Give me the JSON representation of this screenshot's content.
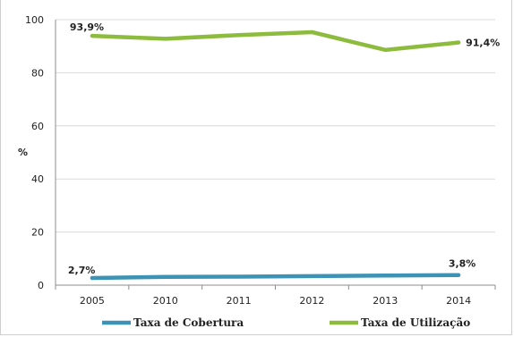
{
  "chart_data": {
    "type": "line",
    "ylabel": "%",
    "xlabel": "",
    "ylim": [
      0,
      100
    ],
    "yticks": [
      0,
      20,
      40,
      60,
      80,
      100
    ],
    "categories": [
      "2005",
      "2010",
      "2011",
      "2012",
      "2013",
      "2014"
    ],
    "grid": true,
    "legend_position": "bottom",
    "series": [
      {
        "name": "Taxa de Cobertura",
        "color": "#3c93b5",
        "values": [
          2.7,
          3.1,
          3.2,
          3.4,
          3.6,
          3.8
        ],
        "labels": [
          {
            "index": 0,
            "text": "2,7%"
          },
          {
            "index": 5,
            "text": "3,8%"
          }
        ]
      },
      {
        "name": "Taxa de Utilização",
        "color": "#8dbb3e",
        "values": [
          93.9,
          92.8,
          94.2,
          95.3,
          88.6,
          91.4
        ],
        "labels": [
          {
            "index": 0,
            "text": "93,9%"
          },
          {
            "index": 5,
            "text": "91,4%"
          }
        ]
      }
    ]
  }
}
